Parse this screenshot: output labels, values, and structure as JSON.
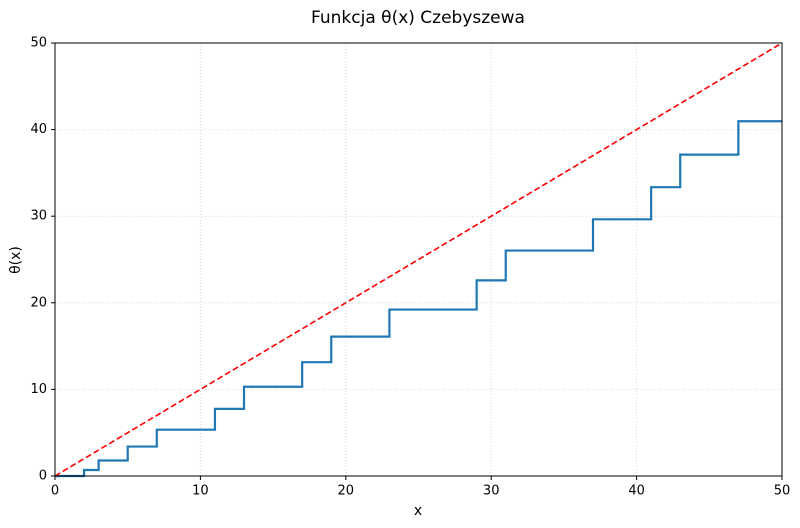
{
  "chart_data": {
    "type": "line",
    "title": "Funkcja θ(x) Czebyszewa",
    "xlabel": "x",
    "ylabel": "θ(x)",
    "xlim": [
      0,
      50
    ],
    "ylim": [
      0,
      50
    ],
    "xticks": [
      0,
      10,
      20,
      30,
      40,
      50
    ],
    "yticks": [
      0,
      10,
      20,
      30,
      40,
      50
    ],
    "grid": true,
    "series": [
      {
        "color": "#1f77b4",
        "drawstyle": "steps-post",
        "linestyle": "solid",
        "x": [
          0,
          2,
          3,
          5,
          7,
          11,
          13,
          17,
          19,
          23,
          29,
          31,
          37,
          41,
          43,
          47,
          50
        ],
        "values": [
          0,
          0.69,
          1.79,
          3.4,
          5.35,
          7.75,
          10.31,
          13.14,
          16.09,
          19.22,
          22.59,
          26.03,
          29.64,
          33.35,
          37.11,
          40.96,
          40.96
        ]
      },
      {
        "color": "#ff0000",
        "drawstyle": "default",
        "linestyle": "dashed",
        "x": [
          0,
          50
        ],
        "values": [
          0,
          50
        ]
      }
    ]
  }
}
